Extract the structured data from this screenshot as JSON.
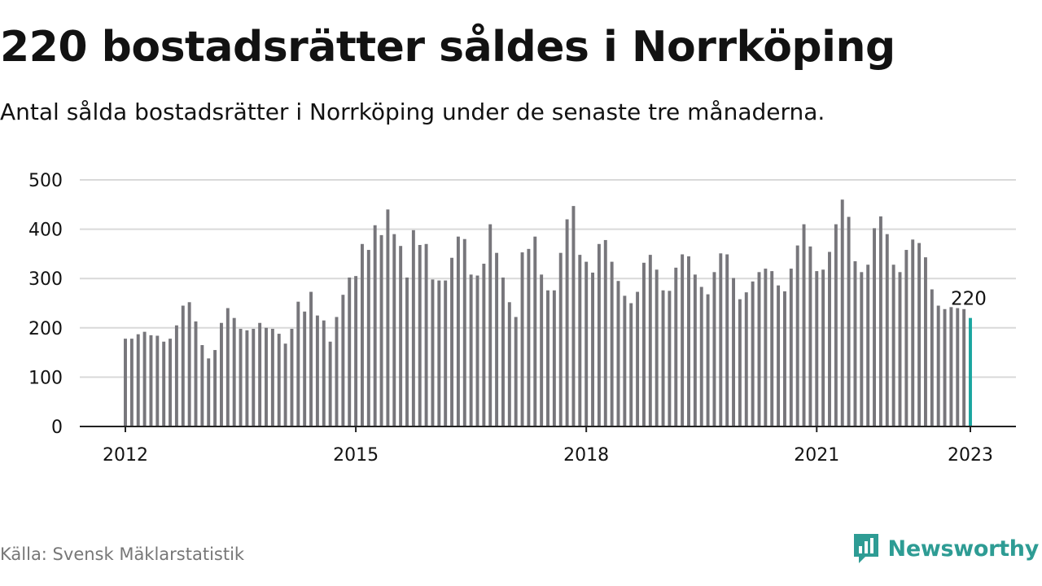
{
  "header": {
    "title": "220 bostadsrätter såldes i Norrköping",
    "subtitle": "Antal sålda bostadsrätter i Norrköping under de senaste tre månaderna."
  },
  "footer": {
    "source": "Källa: Svensk Mäklarstatistik",
    "brand_name": "Newsworthy"
  },
  "colors": {
    "bar": "#77767b",
    "highlight": "#1aa6a0",
    "brand": "#2e9c94",
    "grid": "#d9d9d9",
    "axis": "#222222",
    "text": "#121212",
    "muted": "#777777"
  },
  "chart_data": {
    "type": "bar",
    "title": "",
    "xlabel": "",
    "ylabel": "",
    "ylim": [
      0,
      500
    ],
    "y_ticks": [
      0,
      100,
      200,
      300,
      400,
      500
    ],
    "grid": true,
    "x_ticks": [
      {
        "label": "2012",
        "date": "2012-01"
      },
      {
        "label": "2015",
        "date": "2015-01"
      },
      {
        "label": "2018",
        "date": "2018-01"
      },
      {
        "label": "2021",
        "date": "2021-01"
      },
      {
        "label": "2023",
        "date": "2023-01"
      }
    ],
    "start": "2012-01",
    "end": "2023-01",
    "values": [
      178,
      178,
      187,
      192,
      185,
      184,
      172,
      178,
      205,
      245,
      252,
      213,
      165,
      138,
      155,
      210,
      240,
      220,
      198,
      195,
      198,
      210,
      200,
      198,
      188,
      168,
      198,
      253,
      233,
      273,
      225,
      215,
      172,
      222,
      267,
      302,
      305,
      370,
      358,
      408,
      388,
      440,
      390,
      366,
      302,
      398,
      368,
      370,
      298,
      296,
      296,
      342,
      385,
      380,
      308,
      306,
      330,
      410,
      352,
      302,
      252,
      222,
      353,
      360,
      385,
      308,
      276,
      276,
      352,
      420,
      447,
      348,
      334,
      312,
      370,
      378,
      334,
      295,
      265,
      250,
      273,
      332,
      348,
      318,
      276,
      275,
      322,
      349,
      345,
      308,
      283,
      268,
      313,
      351,
      349,
      301,
      258,
      272,
      294,
      313,
      320,
      315,
      286,
      274,
      320,
      367,
      410,
      365,
      315,
      318,
      354,
      410,
      460,
      425,
      335,
      313,
      328,
      402,
      426,
      390,
      328,
      313,
      358,
      379,
      372,
      343,
      278,
      245,
      238,
      242,
      240,
      238,
      220
    ],
    "highlight": {
      "date": "2023-01",
      "value": 220,
      "label": "220"
    }
  }
}
